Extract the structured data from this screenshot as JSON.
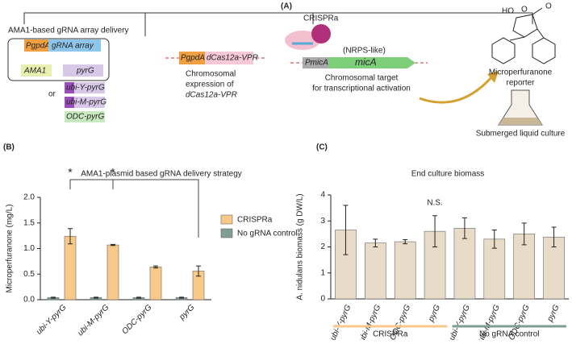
{
  "diagram": {
    "panel": "(A)",
    "plasmid_title": "AMA1-based gRNA array delivery",
    "promoter1": "PgpdA",
    "grna": "gRNA array",
    "ama1": "AMA1",
    "pyrg": "pyrG",
    "or": "or",
    "alt1": "ubi-Y-pyrG",
    "alt2": "ubi-M-pyrG",
    "alt3": "ODC-pyrG",
    "promoter2": "PgpdA",
    "dcas": "dCas12a-VPR",
    "chrom1": "Chromosomal",
    "chrom2": "expression of",
    "chrom3": "dCas12a-VPR",
    "crispra": "CRISPRa",
    "nrps": "(NRPS-like)",
    "pmica": "PmicA",
    "mica": "micA",
    "target1": "Chromosomal target",
    "target2": "for transcriptional activation",
    "reporter1": "Microperfuranone",
    "reporter2": "reporter",
    "culture": "Submerged liquid culture",
    "ho": "HO",
    "o1": "O",
    "o2": "O"
  },
  "chart_data": [
    {
      "type": "bar",
      "panel": "(B)",
      "title": "AMA1-plasmid based gRNA delivery strategy",
      "ylabel": "Microperfuranone (mg/L)",
      "categories": [
        "ubi-Y-pyrG",
        "ubi-M-pyrG",
        "ODC-pyrG",
        "pyrG"
      ],
      "series": [
        {
          "name": "CRISPRa",
          "color": "#f9c98a",
          "values": [
            1.24,
            1.07,
            0.64,
            0.56
          ],
          "errors": [
            0.15,
            0.01,
            0.02,
            0.1
          ]
        },
        {
          "name": "No gRNA control",
          "color": "#7f9e95",
          "values": [
            0.04,
            0.04,
            0.04,
            0.04
          ],
          "errors": [
            0.01,
            0.01,
            0.01,
            0.01
          ]
        }
      ],
      "ylim": [
        0,
        2.0
      ],
      "yticks": [
        {
          "value": 0,
          "label": "0.0"
        },
        {
          "value": 0.5,
          "label": "0.5"
        },
        {
          "value": 1.0,
          "label": "1.0"
        },
        {
          "value": 1.5,
          "label": "1.5"
        },
        {
          "value": 2.0,
          "label": "2.0"
        }
      ],
      "annotations": [
        "*",
        "*"
      ],
      "legend": "right"
    },
    {
      "type": "bar",
      "panel": "(C)",
      "title": "End culture biomass",
      "ylabel": "A. nidulans biomass (g DW/L)",
      "categories": [
        "ubi-Y-pyrG",
        "ubi-M-pyrG",
        "ODC-pyrG",
        "pyrG",
        "ubi-Y-pyrG",
        "ubi-M-pyrG",
        "ODC-pyrG",
        "pyrG"
      ],
      "series": [
        {
          "color": "#e8dcc8",
          "values": [
            2.65,
            2.15,
            2.2,
            2.6,
            2.72,
            2.3,
            2.5,
            2.38
          ],
          "errors": [
            0.95,
            0.15,
            0.08,
            0.6,
            0.4,
            0.35,
            0.42,
            0.38
          ]
        }
      ],
      "ylim": [
        0,
        4
      ],
      "yticks": [
        0,
        1,
        2,
        3,
        4
      ],
      "annotations": [
        "N.S."
      ],
      "groups": [
        {
          "name": "CRISPRa",
          "color": "#f9c98a"
        },
        {
          "name": "No gRNA control",
          "color": "#7f9e95"
        }
      ]
    }
  ]
}
